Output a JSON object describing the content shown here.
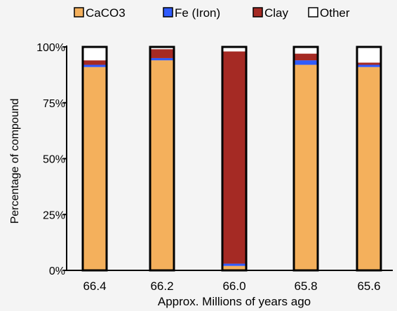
{
  "chart_data": {
    "type": "bar",
    "stacked": true,
    "categories": [
      "66.4",
      "66.2",
      "66.0",
      "65.8",
      "65.6"
    ],
    "series": [
      {
        "name": "CaCO3",
        "color": "#f4b05c",
        "values": [
          91,
          94,
          2,
          92,
          91
        ]
      },
      {
        "name": "Fe (Iron)",
        "color": "#2f5bff",
        "values": [
          1,
          1,
          1,
          2,
          1
        ]
      },
      {
        "name": "Clay",
        "color": "#a52a24",
        "values": [
          2,
          4,
          95,
          3,
          1
        ]
      },
      {
        "name": "Other",
        "color": "#ffffff",
        "values": [
          6,
          1,
          2,
          3,
          7
        ]
      }
    ],
    "title": "",
    "xlabel": "Approx. Millions of years ago",
    "ylabel": "Percentage of compound",
    "ylim": [
      0,
      100
    ],
    "y_ticks": [
      "0%",
      "25%",
      "50%",
      "75%",
      "100%"
    ],
    "y_tick_values": [
      0,
      25,
      50,
      75,
      100
    ],
    "legend_position": "top",
    "grid": false
  }
}
